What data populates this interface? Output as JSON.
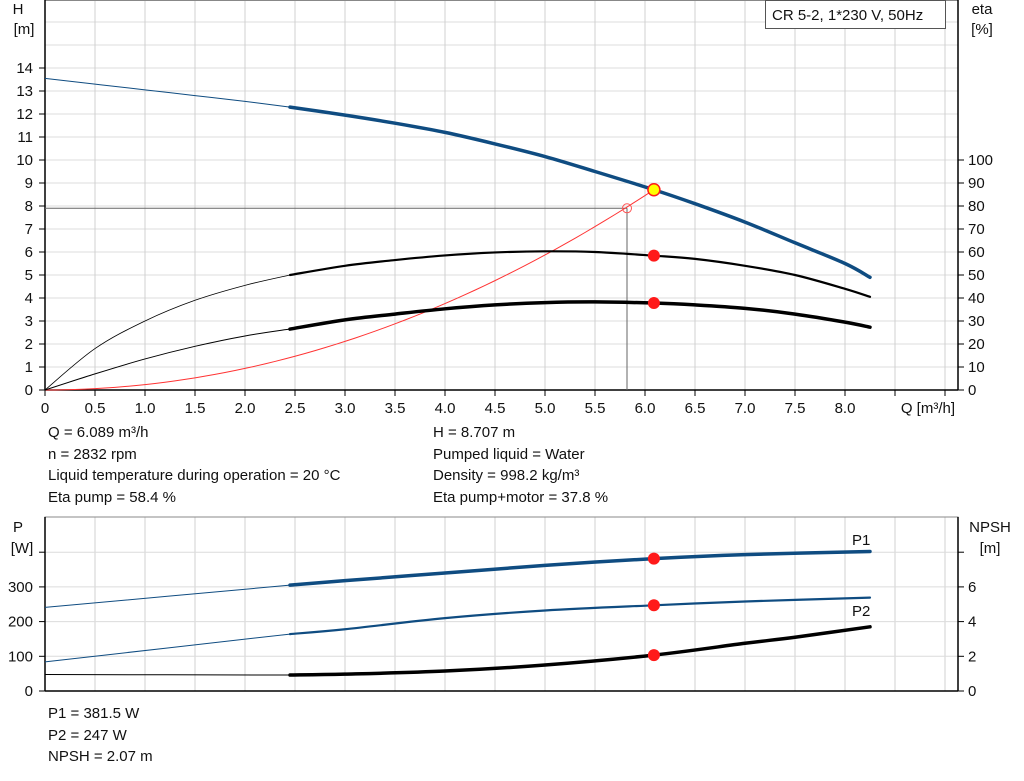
{
  "chart_data": [
    {
      "type": "line",
      "title": "CR 5-2, 1*230 V, 50Hz",
      "xlabel": "Q [m³/h]",
      "ylabel": "H [m]",
      "ylabel_left": {
        "name": "H",
        "unit": "[m]"
      },
      "ylabel_right": {
        "name": "eta",
        "unit": "[%]"
      },
      "xlim": [
        0,
        9.0
      ],
      "ylim": [
        0,
        16
      ],
      "ylim_right": [
        0,
        160
      ],
      "x_ticks": [
        "0",
        "0.5",
        "1.0",
        "1.5",
        "2.0",
        "2.5",
        "3.0",
        "3.5",
        "4.0",
        "4.5",
        "5.0",
        "5.5",
        "6.0",
        "6.5",
        "7.0",
        "7.5",
        "8.0"
      ],
      "y_ticks": [
        "0",
        "1",
        "2",
        "3",
        "4",
        "5",
        "6",
        "7",
        "8",
        "9",
        "10",
        "11",
        "12",
        "13",
        "14"
      ],
      "y_ticks_right": [
        "0",
        "10",
        "20",
        "30",
        "40",
        "50",
        "60",
        "70",
        "80",
        "90",
        "100"
      ],
      "grid": true,
      "colors": {
        "head": "#0f4c81",
        "eta": "#000000",
        "system": "#ff3333",
        "duty_point": "#ff1a1a",
        "duty_fill": "#ffff00"
      },
      "series": [
        {
          "key": "H",
          "axis": "left",
          "color": "#0f4c81",
          "thick_from": 2.45,
          "x": [
            0,
            0.5,
            1.0,
            1.5,
            2.0,
            2.45,
            3.0,
            3.5,
            4.0,
            4.5,
            5.0,
            5.5,
            6.089,
            6.5,
            7.0,
            7.5,
            8.0,
            8.25
          ],
          "y": [
            13.55,
            13.3,
            13.05,
            12.8,
            12.55,
            12.3,
            11.95,
            11.6,
            11.2,
            10.7,
            10.15,
            9.5,
            8.707,
            8.1,
            7.3,
            6.4,
            5.5,
            4.9
          ]
        },
        {
          "key": "eta_pump",
          "axis": "right",
          "color": "#000000",
          "thick_from": 2.45,
          "x": [
            0,
            0.5,
            1.0,
            1.5,
            2.0,
            2.45,
            3.0,
            3.5,
            4.0,
            4.5,
            5.0,
            5.5,
            6.089,
            6.5,
            7.0,
            7.5,
            8.0,
            8.25
          ],
          "y": [
            0,
            18,
            30,
            39,
            45.5,
            50,
            54,
            56.5,
            58.5,
            59.8,
            60.3,
            60,
            58.4,
            57,
            54,
            50,
            44,
            40.5
          ]
        },
        {
          "key": "eta_total",
          "axis": "right",
          "color": "#000000",
          "thick_from": 2.45,
          "x": [
            0,
            0.5,
            1.0,
            1.5,
            2.0,
            2.45,
            3.0,
            3.5,
            4.0,
            4.5,
            5.0,
            5.5,
            6.089,
            6.5,
            7.0,
            7.5,
            8.0,
            8.25
          ],
          "y": [
            0,
            7,
            13.5,
            19,
            23.5,
            26.5,
            30.5,
            33,
            35.3,
            37,
            38,
            38.3,
            37.8,
            37,
            35.5,
            33,
            29.5,
            27.3
          ]
        },
        {
          "key": "system_curve",
          "axis": "left",
          "color": "#ff3333",
          "quadratic_through": [
            6.089,
            8.707
          ]
        }
      ],
      "duty_point": {
        "Q": 6.089,
        "H": 8.707,
        "eta_pump": 58.4,
        "eta_total": 37.8
      },
      "reference_point": {
        "Q": 5.82,
        "H": 7.9
      }
    },
    {
      "type": "line",
      "ylabel_left": {
        "name": "P",
        "unit": "[W]"
      },
      "ylabel_right": {
        "name": "NPSH",
        "unit": "[m]"
      },
      "xlim": [
        0,
        9.0
      ],
      "ylim": [
        0,
        450
      ],
      "ylim_right": [
        0,
        9
      ],
      "y_ticks": [
        "0",
        "100",
        "200",
        "300"
      ],
      "y_ticks_right": [
        "0",
        "2",
        "4",
        "6"
      ],
      "grid": true,
      "series": [
        {
          "name": "P1",
          "axis": "left",
          "color": "#0f4c81",
          "thick_from": 2.45,
          "x": [
            0,
            2.45,
            3.0,
            4.0,
            5.0,
            6.089,
            7.0,
            8.25
          ],
          "y": [
            241,
            305,
            318,
            340,
            362,
            381.5,
            393,
            402
          ]
        },
        {
          "name": "P2",
          "axis": "left",
          "color": "#0f4c81",
          "thick_from": 2.45,
          "medium": true,
          "x": [
            0,
            2.45,
            3.0,
            4.0,
            5.0,
            6.089,
            7.0,
            8.25
          ],
          "y": [
            84,
            164,
            178,
            210,
            232,
            247,
            258,
            269
          ]
        },
        {
          "key": "NPSH",
          "axis": "right",
          "color": "#000000",
          "thick_from": 2.45,
          "x": [
            0,
            2.45,
            3.0,
            4.0,
            5.0,
            6.089,
            7.0,
            7.5,
            8.25
          ],
          "y": [
            0.95,
            0.92,
            0.97,
            1.15,
            1.5,
            2.07,
            2.75,
            3.1,
            3.7
          ]
        }
      ],
      "duty_point": {
        "Q": 6.089,
        "P1": 381.5,
        "P2": 247,
        "NPSH": 2.07
      }
    }
  ],
  "info_top_left": [
    "Q = 6.089 m³/h",
    "n = 2832 rpm",
    "Liquid temperature during operation = 20 °C",
    "Eta pump = 58.4 %"
  ],
  "info_top_right": [
    "H = 8.707 m",
    "Pumped liquid = Water",
    "Density = 998.2 kg/m³",
    "Eta pump+motor = 37.8 %"
  ],
  "info_bottom": [
    "P1 = 381.5 W",
    "P2 = 247 W",
    "NPSH = 2.07 m"
  ]
}
